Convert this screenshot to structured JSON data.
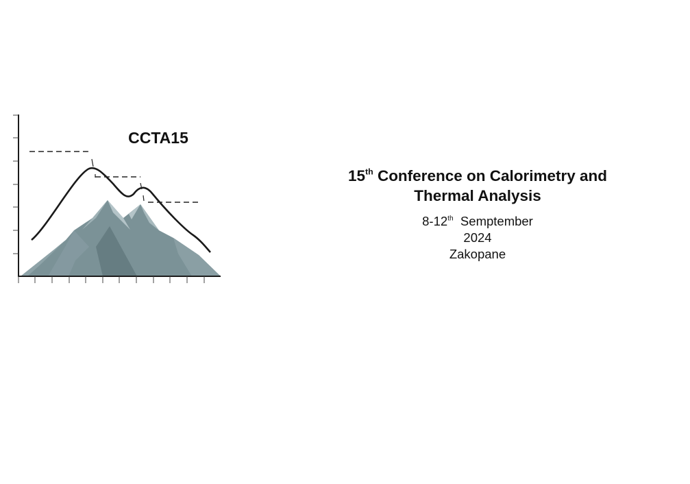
{
  "logo": {
    "acronym": "CCTA15",
    "colors": {
      "mountain_dark": "#6f878c",
      "mountain_light": "#b4c4c8",
      "line": "#1a1a1a"
    }
  },
  "title": {
    "ordinal_number": "15",
    "ordinal_suffix": "th",
    "line1_rest": " Conference on Calorimetry and",
    "line2": "Thermal Analysis"
  },
  "details": {
    "date_range": "8-12",
    "date_suffix": "th",
    "month": "  Semptember",
    "year": "2024",
    "location": "Zakopane"
  }
}
